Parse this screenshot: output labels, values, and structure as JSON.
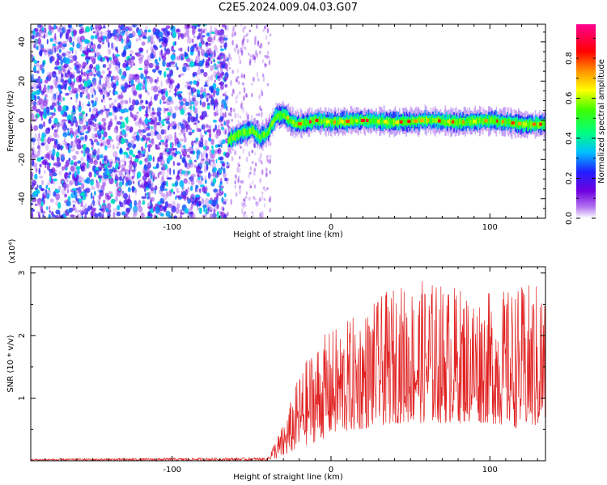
{
  "figure_title": "C2E5.2024.009.04.03.G07",
  "chart_data": [
    {
      "type": "heatmap",
      "title": "",
      "xlabel": "Height of straight line (km)",
      "ylabel": "Frequency (Hz)",
      "xlim": [
        -189,
        135
      ],
      "ylim": [
        -50,
        49
      ],
      "x_ticks": [
        -100,
        0,
        100
      ],
      "y_ticks": [
        -40,
        -20,
        0,
        20,
        40
      ],
      "colorbar": {
        "label": "Normalized spectral amplitude",
        "ticks": [
          0.0,
          0.2,
          0.4,
          0.6,
          0.8
        ],
        "range": [
          0,
          0.97
        ],
        "colormap": [
          "#ffffff",
          "#7000e0",
          "#2020ff",
          "#00e0ff",
          "#00ff40",
          "#ffff00",
          "#ff8000",
          "#ff0000",
          "#ff00a0"
        ]
      },
      "features": {
        "noise_region_x": [
          -189,
          -65
        ],
        "sparse_noise_x": [
          -65,
          -38
        ],
        "signal_track": [
          [
            -65,
            -10
          ],
          [
            -58,
            -7
          ],
          [
            -50,
            -5
          ],
          [
            -45,
            -9
          ],
          [
            -40,
            -6
          ],
          [
            -35,
            2
          ],
          [
            -30,
            3
          ],
          [
            -25,
            -1
          ],
          [
            -20,
            -2
          ],
          [
            -10,
            0
          ],
          [
            0,
            -1
          ],
          [
            20,
            0
          ],
          [
            40,
            -1
          ],
          [
            60,
            0
          ],
          [
            80,
            -1
          ],
          [
            100,
            0
          ],
          [
            120,
            -2
          ],
          [
            135,
            -2
          ]
        ],
        "noise_amplitude_max": 0.35,
        "signal_amplitude_peak": 0.95
      }
    },
    {
      "type": "line",
      "title": "",
      "xlabel": "Height of straight line (km)",
      "ylabel": "SNR (10 * v/v)",
      "y_multiplier": "(x10⁴)",
      "xlim": [
        -189,
        135
      ],
      "ylim": [
        0,
        3.1
      ],
      "x_ticks": [
        -100,
        0,
        100
      ],
      "y_ticks": [
        1,
        2,
        3
      ],
      "series": [
        {
          "color": "#e02020",
          "envelope": {
            "x": [
              -189,
              -40,
              -30,
              -20,
              -10,
              0,
              20,
              40,
              60,
              80,
              100,
              120,
              135
            ],
            "y_max": [
              0.03,
              0.05,
              0.6,
              1.4,
              1.9,
              2.1,
              2.4,
              2.8,
              2.9,
              2.8,
              2.7,
              2.8,
              2.9
            ],
            "y_min": [
              0.0,
              0.0,
              0.05,
              0.2,
              0.3,
              0.4,
              0.5,
              0.6,
              0.6,
              0.6,
              0.6,
              0.5,
              0.5
            ]
          }
        }
      ]
    }
  ]
}
